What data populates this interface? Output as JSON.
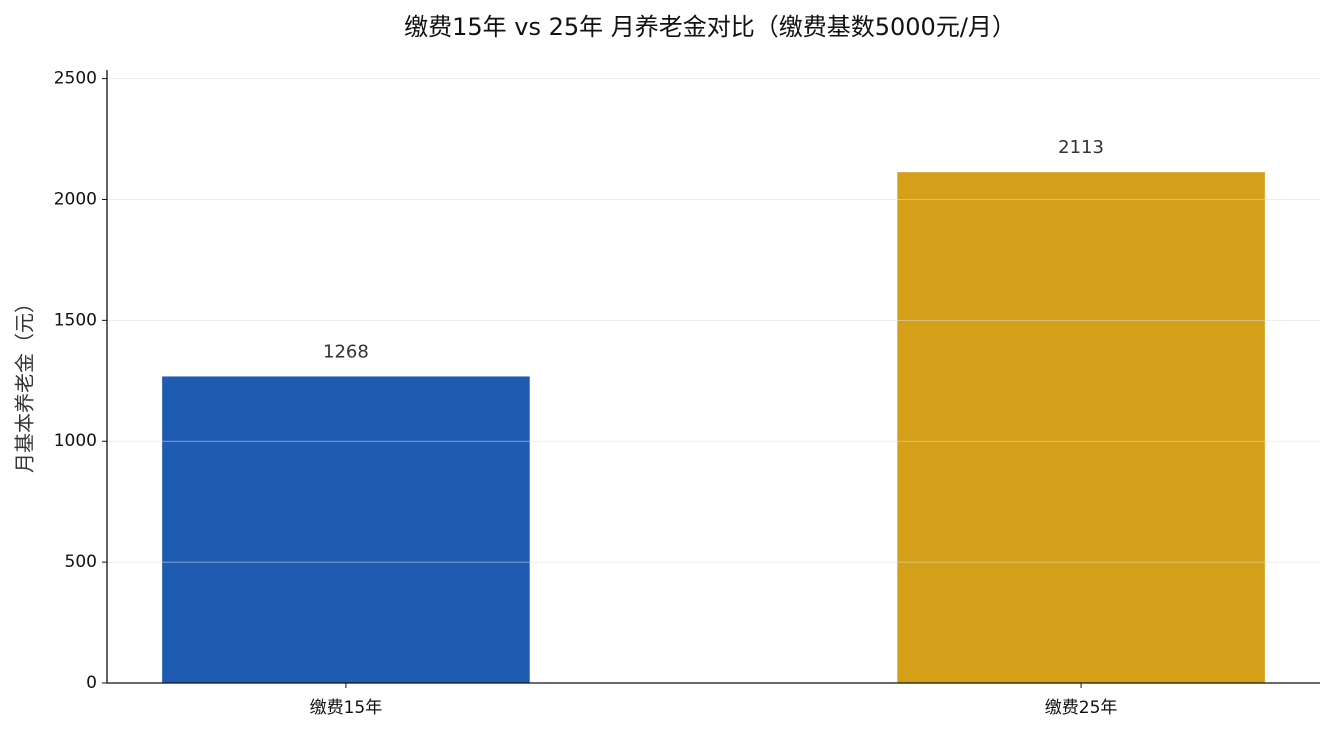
{
  "chart_data": {
    "type": "bar",
    "title": "缴费15年 vs 25年 月养老金对比（缴费基数5000元/月）",
    "y_label": "月基本养老金（元）",
    "categories": [
      "缴费15年",
      "缴费25年"
    ],
    "values": [
      1268,
      2113
    ],
    "colors": [
      "#1f5bb0",
      "#d4a01a"
    ],
    "ylim": [
      0,
      2535.6
    ],
    "yticks": [
      0,
      500,
      1000,
      1500,
      2000,
      2500
    ],
    "grid": true
  }
}
